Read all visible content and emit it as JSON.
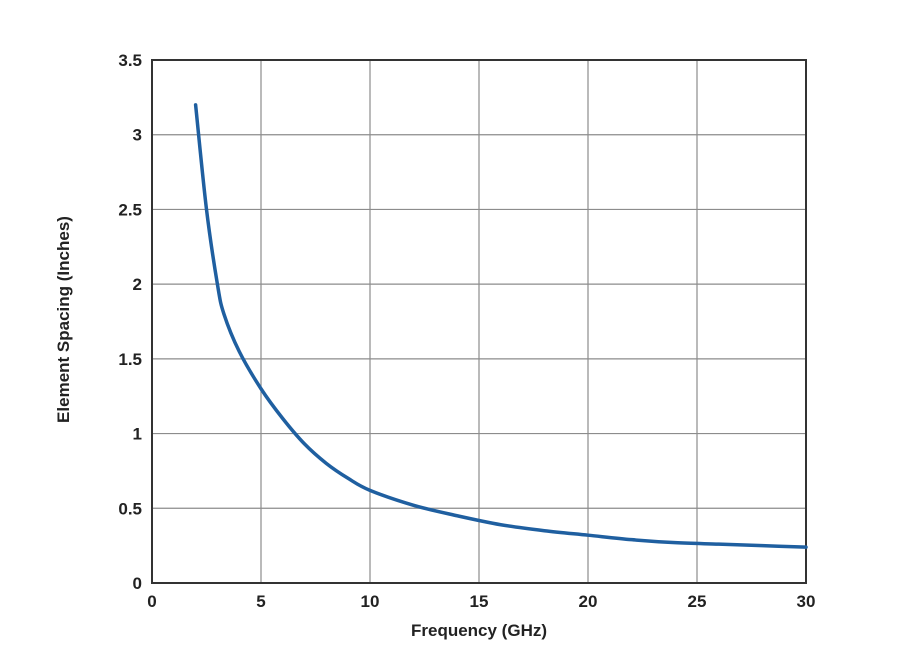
{
  "chart_data": {
    "type": "line",
    "title": "",
    "xlabel": "Frequency (GHz)",
    "ylabel": "Element Spacing (Inches)",
    "xlim": [
      0,
      30
    ],
    "ylim": [
      0,
      3.5
    ],
    "x_ticks": [
      0,
      5,
      10,
      15,
      20,
      25,
      30
    ],
    "y_ticks": [
      0,
      0.5,
      1,
      1.5,
      2,
      2.5,
      3,
      3.5
    ],
    "x_tick_labels": [
      "0",
      "5",
      "10",
      "15",
      "20",
      "25",
      "30"
    ],
    "y_tick_labels": [
      "0",
      "0.5",
      "1",
      "1.5",
      "2",
      "2.5",
      "3",
      "3.5"
    ],
    "grid": true,
    "legend": "none",
    "series": [
      {
        "color": "#1f5fa0",
        "x": [
          2,
          2.5,
          3,
          3.3,
          4,
          5,
          6,
          7,
          8,
          9,
          10,
          12,
          14,
          16,
          18,
          20,
          22,
          24,
          26,
          28,
          30
        ],
        "y": [
          3.2,
          2.5,
          2.0,
          1.8,
          1.55,
          1.3,
          1.1,
          0.93,
          0.8,
          0.7,
          0.62,
          0.52,
          0.45,
          0.39,
          0.35,
          0.32,
          0.29,
          0.27,
          0.26,
          0.25,
          0.24
        ]
      }
    ]
  }
}
